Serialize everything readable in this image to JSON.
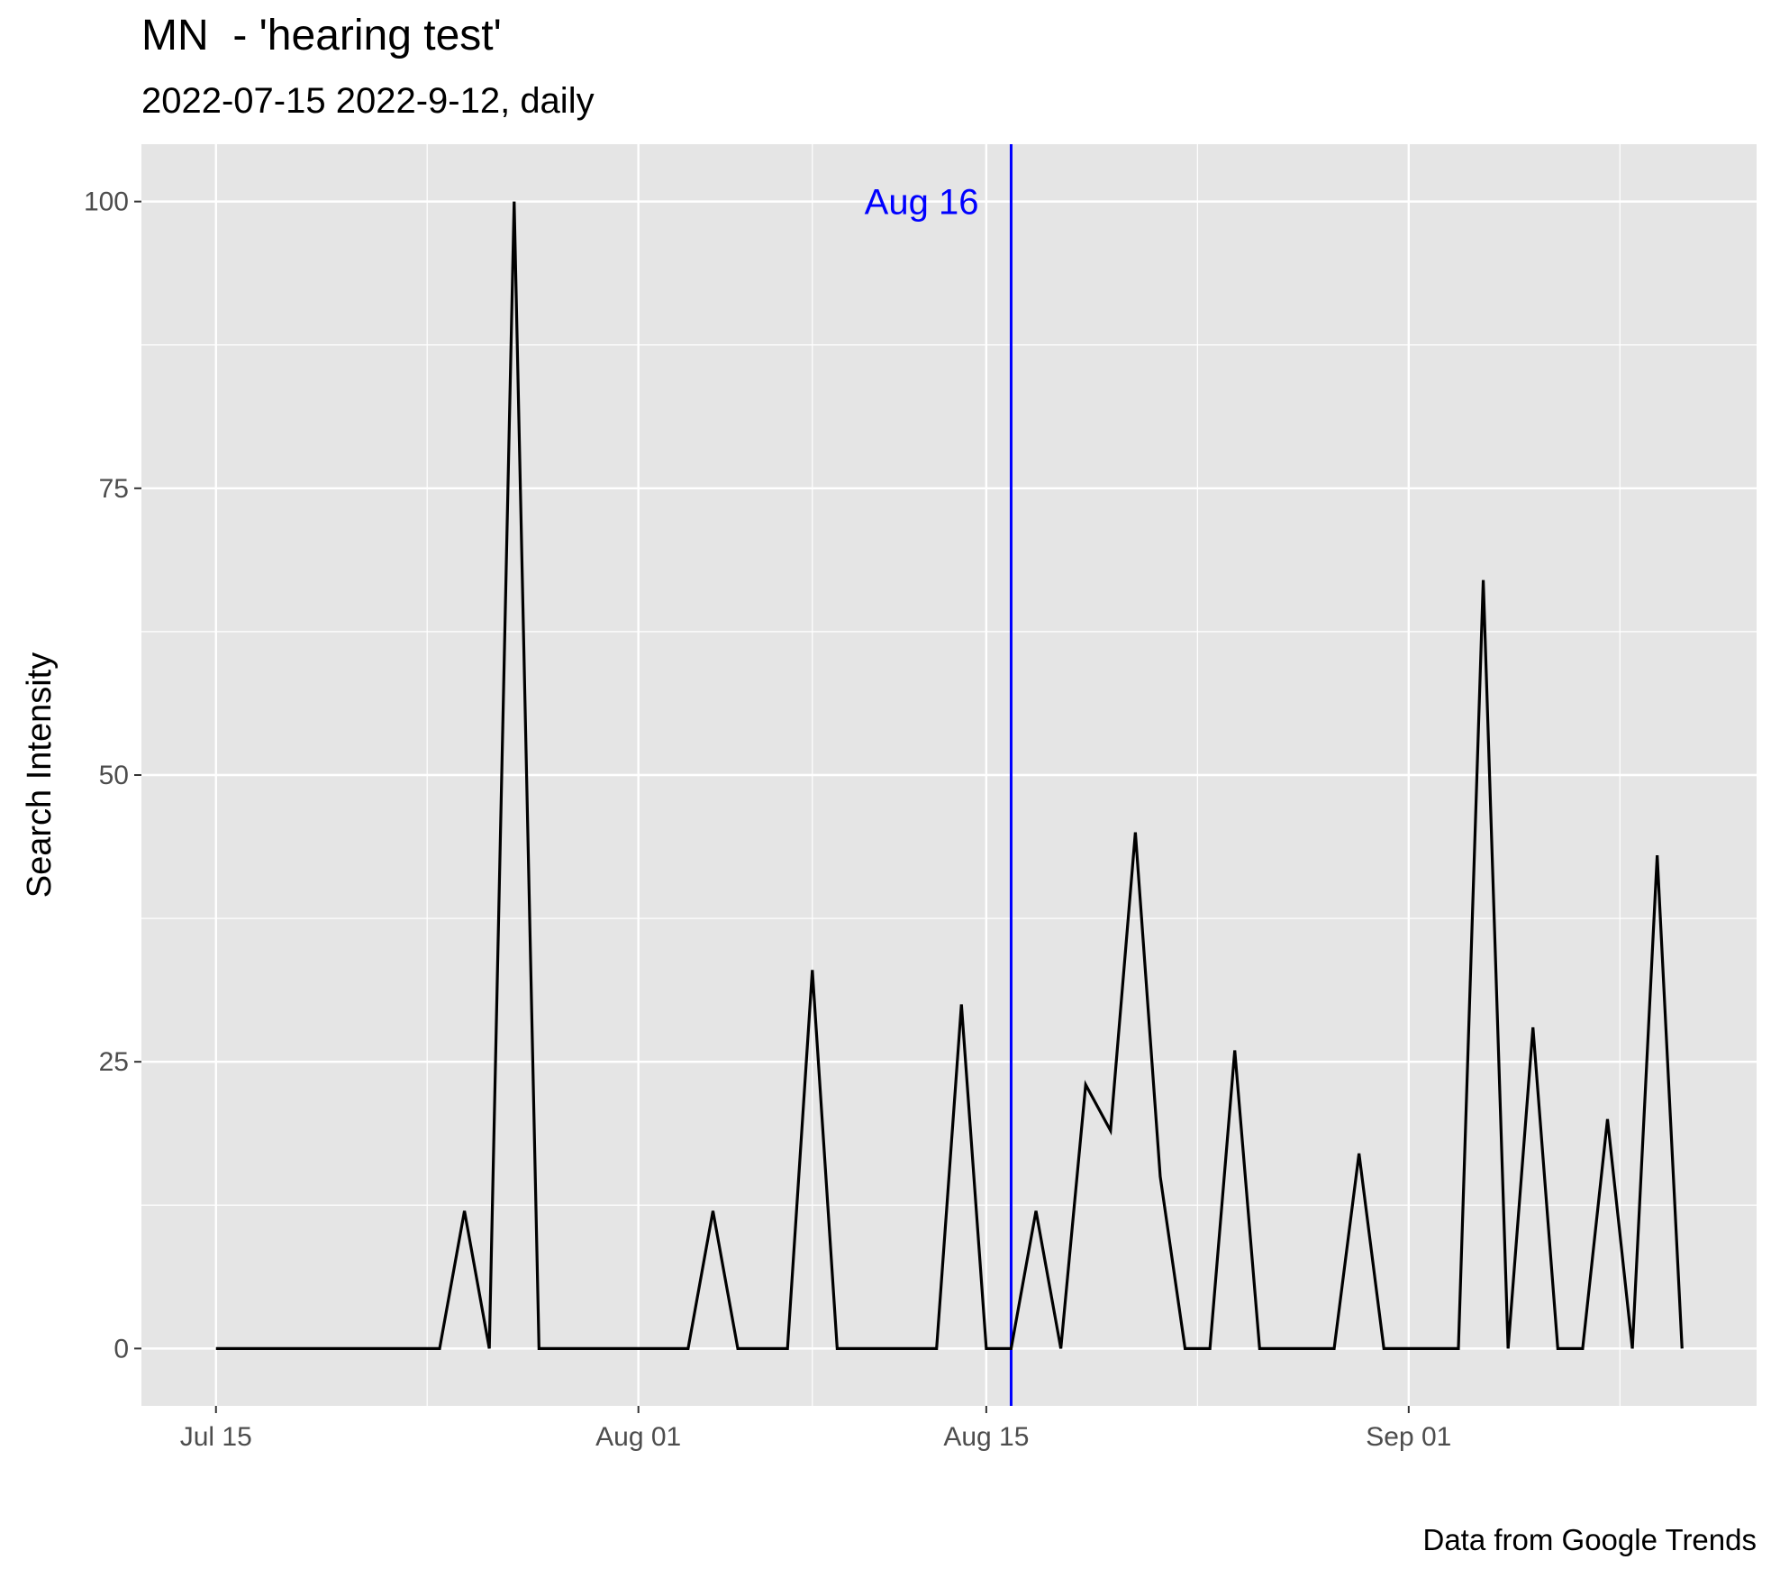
{
  "chart_data": {
    "type": "line",
    "title": "MN  - 'hearing test'",
    "subtitle": "2022-07-15 2022-9-12, daily",
    "caption": "Data from Google Trends",
    "xlabel": "",
    "ylabel": "Search Intensity",
    "x_start": "2022-07-15",
    "x_end": "2022-09-12",
    "xlim": [
      "2022-07-12",
      "2022-09-15"
    ],
    "ylim": [
      -5,
      105
    ],
    "x_ticks": [
      {
        "date": "2022-07-15",
        "label": "Jul 15"
      },
      {
        "date": "2022-08-01",
        "label": "Aug 01"
      },
      {
        "date": "2022-08-15",
        "label": "Aug 15"
      },
      {
        "date": "2022-09-01",
        "label": "Sep 01"
      }
    ],
    "y_ticks": [
      0,
      25,
      50,
      75,
      100
    ],
    "grid": true,
    "series": [
      {
        "color": "#000000",
        "x": [
          "2022-07-15",
          "2022-07-16",
          "2022-07-17",
          "2022-07-18",
          "2022-07-19",
          "2022-07-20",
          "2022-07-21",
          "2022-07-22",
          "2022-07-23",
          "2022-07-24",
          "2022-07-25",
          "2022-07-26",
          "2022-07-27",
          "2022-07-28",
          "2022-07-29",
          "2022-07-30",
          "2022-07-31",
          "2022-08-01",
          "2022-08-02",
          "2022-08-03",
          "2022-08-04",
          "2022-08-05",
          "2022-08-06",
          "2022-08-07",
          "2022-08-08",
          "2022-08-09",
          "2022-08-10",
          "2022-08-11",
          "2022-08-12",
          "2022-08-13",
          "2022-08-14",
          "2022-08-15",
          "2022-08-16",
          "2022-08-17",
          "2022-08-18",
          "2022-08-19",
          "2022-08-20",
          "2022-08-21",
          "2022-08-22",
          "2022-08-23",
          "2022-08-24",
          "2022-08-25",
          "2022-08-26",
          "2022-08-27",
          "2022-08-28",
          "2022-08-29",
          "2022-08-30",
          "2022-08-31",
          "2022-09-01",
          "2022-09-02",
          "2022-09-03",
          "2022-09-04",
          "2022-09-05",
          "2022-09-06",
          "2022-09-07",
          "2022-09-08",
          "2022-09-09",
          "2022-09-10",
          "2022-09-11",
          "2022-09-12"
        ],
        "values": [
          0,
          0,
          0,
          0,
          0,
          0,
          0,
          0,
          0,
          0,
          12,
          0,
          100,
          0,
          0,
          0,
          0,
          0,
          0,
          0,
          12,
          0,
          0,
          0,
          33,
          0,
          0,
          0,
          0,
          0,
          30,
          0,
          0,
          12,
          0,
          23,
          19,
          45,
          15,
          0,
          0,
          26,
          0,
          0,
          0,
          0,
          17,
          0,
          0,
          0,
          0,
          67,
          0,
          28,
          0,
          0,
          20,
          0,
          43,
          0
        ]
      }
    ],
    "annotations": [
      {
        "type": "vline",
        "date": "2022-08-16",
        "label": "Aug 16",
        "color": "#0000ff",
        "label_y": 100
      }
    ]
  }
}
